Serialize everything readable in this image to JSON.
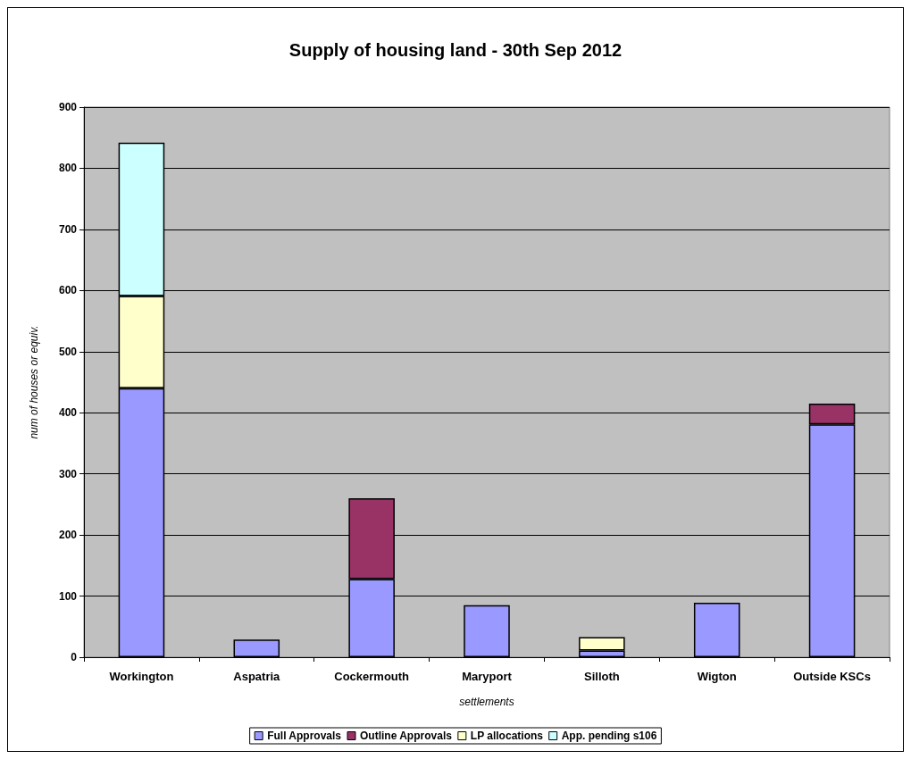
{
  "chart_data": {
    "type": "bar",
    "title": "Supply of housing land - 30th Sep 2012",
    "xlabel": "settlements",
    "ylabel": "num of houses or equiv.",
    "categories": [
      "Workington",
      "Aspatria",
      "Cockermouth",
      "Maryport",
      "Silloth",
      "Wigton",
      "Outside KSCs"
    ],
    "series": [
      {
        "name": "Full Approvals",
        "color": "#9999ff",
        "values": [
          440,
          29,
          128,
          85,
          11,
          89,
          381
        ]
      },
      {
        "name": "Outline Approvals",
        "color": "#993366",
        "values": [
          null,
          null,
          132,
          null,
          null,
          null,
          34
        ]
      },
      {
        "name": "LP allocations",
        "color": "#ffffcc",
        "values": [
          151,
          null,
          null,
          null,
          22,
          null,
          null
        ]
      },
      {
        "name": "App. pending s106",
        "color": "#ccffff",
        "values": [
          251,
          null,
          null,
          null,
          null,
          null,
          null
        ]
      }
    ],
    "stacked": true,
    "ylim": [
      0,
      900
    ],
    "yticks": [
      0,
      100,
      200,
      300,
      400,
      500,
      600,
      700,
      800,
      900
    ],
    "grid": "y",
    "legend": "bottom"
  }
}
